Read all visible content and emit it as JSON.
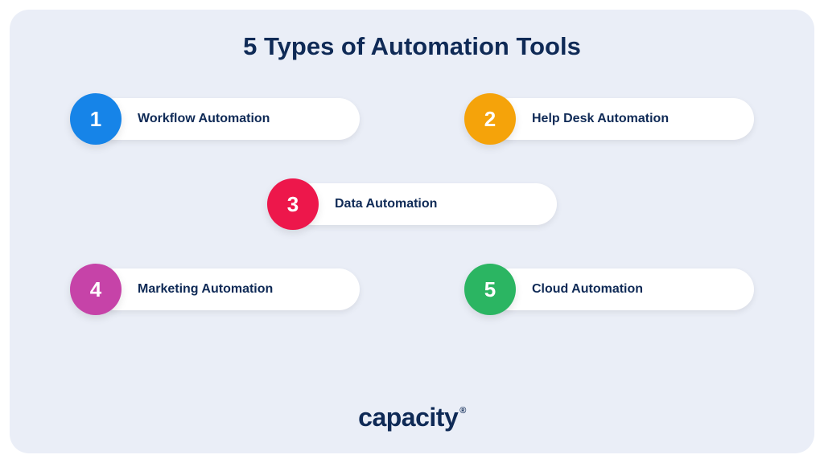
{
  "infographic": {
    "type": "infographic",
    "title": "5 Types of Automation Tools",
    "title_color": "#0f2a56",
    "title_fontsize": 31,
    "background_color": "#eaeef7",
    "pill_background": "#ffffff",
    "text_color": "#0f2a56",
    "item_fontsize": 16,
    "circle_diameter": 64,
    "pill_height": 52,
    "layout_rows": [
      [
        0,
        1
      ],
      [
        2
      ],
      [
        3,
        4
      ]
    ],
    "items": [
      {
        "number": "1",
        "label": "Workflow Automation",
        "circle_color": "#1684e8"
      },
      {
        "number": "2",
        "label": "Help Desk Automation",
        "circle_color": "#f5a30a"
      },
      {
        "number": "3",
        "label": "Data Automation",
        "circle_color": "#ed174b"
      },
      {
        "number": "4",
        "label": "Marketing Automation",
        "circle_color": "#c643a8"
      },
      {
        "number": "5",
        "label": "Cloud Automation",
        "circle_color": "#2bb562"
      }
    ]
  },
  "brand": {
    "name": "capacity",
    "symbol": "®",
    "color": "#0f2a56",
    "fontsize": 32
  }
}
